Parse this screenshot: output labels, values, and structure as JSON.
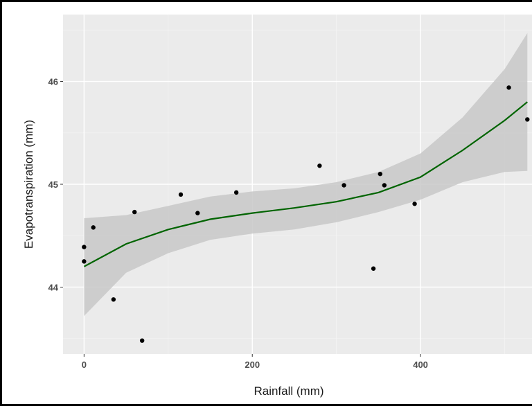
{
  "chart_data": {
    "type": "scatter",
    "title": "",
    "xlabel": "Rainfall (mm)",
    "ylabel": "Evapotranspiration (mm)",
    "xlim": [
      -25,
      535
    ],
    "ylim": [
      43.35,
      46.65
    ],
    "xticks": [
      0,
      200,
      400
    ],
    "yticks": [
      44,
      45,
      46
    ],
    "grid": true,
    "background": "#ebebeb",
    "points": [
      {
        "x": 0,
        "y": 44.39
      },
      {
        "x": 0,
        "y": 44.25
      },
      {
        "x": 11,
        "y": 44.58
      },
      {
        "x": 35,
        "y": 43.88
      },
      {
        "x": 60,
        "y": 44.73
      },
      {
        "x": 69,
        "y": 43.48
      },
      {
        "x": 115,
        "y": 44.9
      },
      {
        "x": 135,
        "y": 44.72
      },
      {
        "x": 181,
        "y": 44.92
      },
      {
        "x": 280,
        "y": 45.18
      },
      {
        "x": 309,
        "y": 44.99
      },
      {
        "x": 344,
        "y": 44.18
      },
      {
        "x": 352,
        "y": 45.1
      },
      {
        "x": 357,
        "y": 44.99
      },
      {
        "x": 393,
        "y": 44.81
      },
      {
        "x": 505,
        "y": 45.94
      },
      {
        "x": 527,
        "y": 45.63
      }
    ],
    "smooth": {
      "color": "#006400",
      "band_color": "#c8c8c8",
      "x": [
        0,
        50,
        100,
        150,
        200,
        250,
        300,
        350,
        400,
        450,
        500,
        527
      ],
      "y": [
        44.2,
        44.42,
        44.56,
        44.66,
        44.72,
        44.77,
        44.83,
        44.92,
        45.07,
        45.33,
        45.62,
        45.8
      ],
      "lower": [
        43.72,
        44.14,
        44.33,
        44.46,
        44.52,
        44.56,
        44.63,
        44.73,
        44.85,
        45.02,
        45.12,
        45.13
      ],
      "upper": [
        44.67,
        44.7,
        44.79,
        44.88,
        44.93,
        44.96,
        45.02,
        45.12,
        45.3,
        45.65,
        46.12,
        46.47
      ]
    }
  }
}
